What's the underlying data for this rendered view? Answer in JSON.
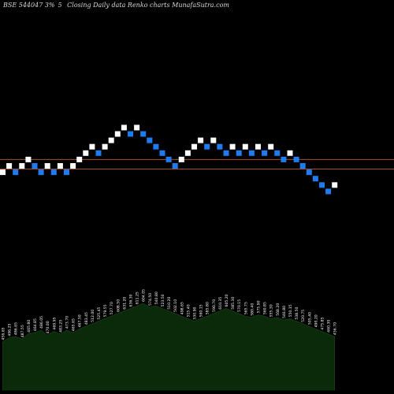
{
  "header": {
    "symbol": "BSE 544047 3%",
    "symbol_suffix": "5",
    "description": "Closing Daily data Renko charts MunafaSutra.com"
  },
  "colors": {
    "background": "#000000",
    "up_brick": "#ffffff",
    "down_brick": "#1e7cf0",
    "level_line": "#a0522d",
    "volume_fill": "#0a2a0a",
    "volume_label": "#ffffff"
  },
  "chart_data": {
    "type": "renko",
    "grid": false,
    "levels": [
      1,
      -0.5
    ],
    "bricks": [
      {
        "level": -1,
        "dir": "up"
      },
      {
        "level": 0,
        "dir": "up"
      },
      {
        "level": -1,
        "dir": "down"
      },
      {
        "level": 0,
        "dir": "up"
      },
      {
        "level": 1,
        "dir": "up"
      },
      {
        "level": 0,
        "dir": "down"
      },
      {
        "level": -1,
        "dir": "down"
      },
      {
        "level": 0,
        "dir": "up"
      },
      {
        "level": -1,
        "dir": "down"
      },
      {
        "level": 0,
        "dir": "up"
      },
      {
        "level": -1,
        "dir": "down"
      },
      {
        "level": 0,
        "dir": "up"
      },
      {
        "level": 1,
        "dir": "up"
      },
      {
        "level": 2,
        "dir": "up"
      },
      {
        "level": 3,
        "dir": "up"
      },
      {
        "level": 2,
        "dir": "down"
      },
      {
        "level": 3,
        "dir": "up"
      },
      {
        "level": 4,
        "dir": "up"
      },
      {
        "level": 5,
        "dir": "up"
      },
      {
        "level": 6,
        "dir": "up"
      },
      {
        "level": 5,
        "dir": "down"
      },
      {
        "level": 6,
        "dir": "up"
      },
      {
        "level": 5,
        "dir": "down"
      },
      {
        "level": 4,
        "dir": "down"
      },
      {
        "level": 3,
        "dir": "down"
      },
      {
        "level": 2,
        "dir": "down"
      },
      {
        "level": 1,
        "dir": "down"
      },
      {
        "level": 0,
        "dir": "down"
      },
      {
        "level": 1,
        "dir": "up"
      },
      {
        "level": 2,
        "dir": "up"
      },
      {
        "level": 3,
        "dir": "up"
      },
      {
        "level": 4,
        "dir": "up"
      },
      {
        "level": 3,
        "dir": "down"
      },
      {
        "level": 4,
        "dir": "up"
      },
      {
        "level": 3,
        "dir": "down"
      },
      {
        "level": 2,
        "dir": "down"
      },
      {
        "level": 3,
        "dir": "up"
      },
      {
        "level": 2,
        "dir": "down"
      },
      {
        "level": 3,
        "dir": "up"
      },
      {
        "level": 2,
        "dir": "down"
      },
      {
        "level": 3,
        "dir": "up"
      },
      {
        "level": 2,
        "dir": "down"
      },
      {
        "level": 3,
        "dir": "up"
      },
      {
        "level": 2,
        "dir": "down"
      },
      {
        "level": 1,
        "dir": "down"
      },
      {
        "level": 2,
        "dir": "up"
      },
      {
        "level": 1,
        "dir": "down"
      },
      {
        "level": 0,
        "dir": "down"
      },
      {
        "level": -1,
        "dir": "down"
      },
      {
        "level": -2,
        "dir": "down"
      },
      {
        "level": -3,
        "dir": "down"
      },
      {
        "level": -4,
        "dir": "down"
      },
      {
        "level": -3,
        "dir": "up"
      }
    ],
    "volume": {
      "values": [
        380,
        410,
        420,
        400,
        440,
        450,
        470,
        430,
        460,
        440,
        470,
        450,
        480,
        500,
        520,
        540,
        560,
        580,
        600,
        620,
        640,
        660,
        680,
        650,
        660,
        640,
        620,
        600,
        580,
        560,
        540,
        560,
        580,
        600,
        620,
        640,
        620,
        600,
        580,
        570,
        590,
        580,
        560,
        570,
        550,
        560,
        540,
        520,
        500,
        480,
        460,
        440,
        420
      ],
      "labels": [
        "456.65",
        "496.25",
        "486.65",
        "487.55",
        "465.80",
        "464.85",
        "486.05",
        "470.00",
        "469.95",
        "483.25",
        "473.70",
        "465.65",
        "467.50",
        "483.45",
        "512.00",
        "525.45",
        "579.55",
        "527.70",
        "608.50",
        "631.20",
        "636.30",
        "611.25",
        "604.05",
        "574.50",
        "540.80",
        "523.50",
        "510.20",
        "502.10",
        "498.65",
        "515.40",
        "530.90",
        "560.15",
        "585.80",
        "590.70",
        "610.35",
        "605.20",
        "585.30",
        "570.15",
        "565.75",
        "580.40",
        "575.90",
        "560.85",
        "555.30",
        "568.20",
        "546.80",
        "550.15",
        "538.50",
        "520.75",
        "505.40",
        "490.20",
        "475.85",
        "460.30",
        "456.70"
      ]
    }
  }
}
